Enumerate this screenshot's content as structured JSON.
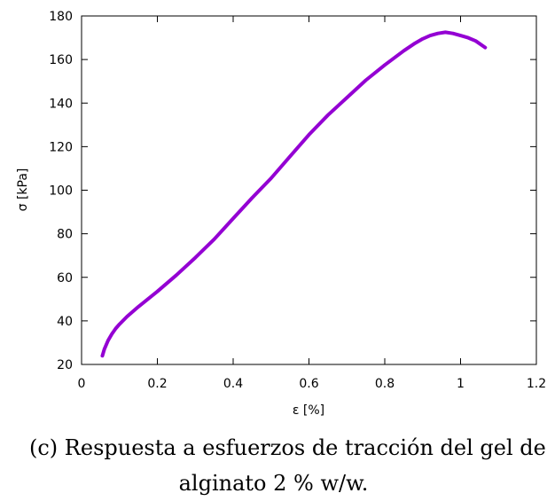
{
  "chart_data": {
    "type": "line",
    "xlabel": "ε [%]",
    "ylabel": "σ [kPa]",
    "xlim": [
      0,
      1.2
    ],
    "ylim": [
      20,
      180
    ],
    "x_ticks": [
      "0",
      "0.2",
      "0.4",
      "0.6",
      "0.8",
      "1",
      "1.2"
    ],
    "y_ticks": [
      "20",
      "40",
      "60",
      "80",
      "100",
      "120",
      "140",
      "160",
      "180"
    ],
    "grid": false,
    "series": [
      {
        "color": "#9400d3",
        "x": [
          0.055,
          0.06,
          0.07,
          0.08,
          0.09,
          0.1,
          0.12,
          0.15,
          0.2,
          0.25,
          0.3,
          0.35,
          0.4,
          0.45,
          0.5,
          0.55,
          0.6,
          0.65,
          0.7,
          0.75,
          0.8,
          0.85,
          0.88,
          0.9,
          0.92,
          0.94,
          0.96,
          0.98,
          1.0,
          1.02,
          1.04,
          1.065
        ],
        "values": [
          24,
          27,
          31,
          34,
          36.5,
          38.5,
          42,
          46.5,
          53.5,
          61,
          69,
          77.5,
          87,
          96.5,
          105.5,
          115.5,
          125.5,
          134.5,
          142.5,
          150.5,
          157.5,
          164,
          167.5,
          169.5,
          171,
          172,
          172.5,
          172,
          171,
          170,
          168.5,
          165.5
        ]
      }
    ]
  },
  "caption": {
    "line1": "(c) Respuesta a esfuerzos de tracción del gel de",
    "line2": "alginato 2 % w/w."
  }
}
